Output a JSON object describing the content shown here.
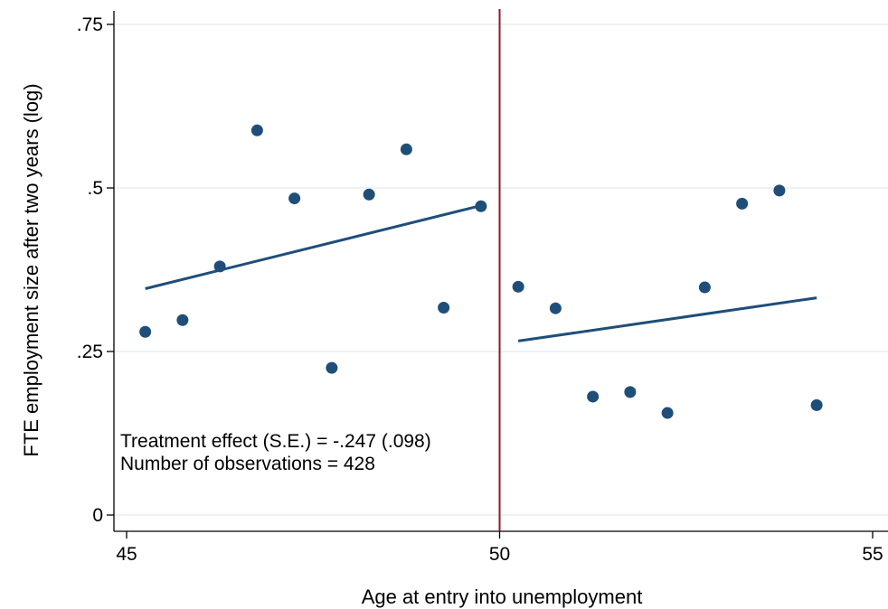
{
  "chart_data": {
    "type": "scatter",
    "xlabel": "Age at entry into unemployment",
    "ylabel": "FTE employment size after two years (log)",
    "xlim": [
      45,
      55
    ],
    "ylim": [
      0,
      0.75
    ],
    "x_ticks": [
      {
        "value": 45,
        "label": "45"
      },
      {
        "value": 50,
        "label": "50"
      },
      {
        "value": 55,
        "label": "55"
      }
    ],
    "y_ticks": [
      {
        "value": 0,
        "label": "0"
      },
      {
        "value": 0.25,
        "label": ".25"
      },
      {
        "value": 0.5,
        "label": ".5"
      },
      {
        "value": 0.75,
        "label": ".75"
      }
    ],
    "grid": "horizontal",
    "cutoff": 50,
    "points": [
      {
        "x": 45.25,
        "y": 0.28
      },
      {
        "x": 45.75,
        "y": 0.298
      },
      {
        "x": 46.25,
        "y": 0.38
      },
      {
        "x": 46.75,
        "y": 0.588
      },
      {
        "x": 47.25,
        "y": 0.484
      },
      {
        "x": 47.75,
        "y": 0.225
      },
      {
        "x": 48.25,
        "y": 0.49
      },
      {
        "x": 48.75,
        "y": 0.559
      },
      {
        "x": 49.25,
        "y": 0.317
      },
      {
        "x": 49.75,
        "y": 0.472
      },
      {
        "x": 50.25,
        "y": 0.349
      },
      {
        "x": 50.75,
        "y": 0.316
      },
      {
        "x": 51.25,
        "y": 0.181
      },
      {
        "x": 51.75,
        "y": 0.188
      },
      {
        "x": 52.25,
        "y": 0.156
      },
      {
        "x": 52.75,
        "y": 0.348
      },
      {
        "x": 53.25,
        "y": 0.476
      },
      {
        "x": 53.75,
        "y": 0.496
      },
      {
        "x": 54.25,
        "y": 0.168
      }
    ],
    "fit_lines": [
      {
        "side": "left",
        "x": [
          45.25,
          49.75
        ],
        "y": [
          0.346,
          0.473
        ]
      },
      {
        "side": "right",
        "x": [
          50.25,
          54.25
        ],
        "y": [
          0.266,
          0.332
        ]
      }
    ],
    "annotations": [
      "Treatment effect (S.E.) = -.247 (.098)",
      "Number of observations = 428"
    ],
    "colors": {
      "points": "#1f4e79",
      "fit": "#1f4e79",
      "cutoff_line": "#8b1a2a",
      "grid": "#e8edf1",
      "axis": "#000000"
    }
  }
}
